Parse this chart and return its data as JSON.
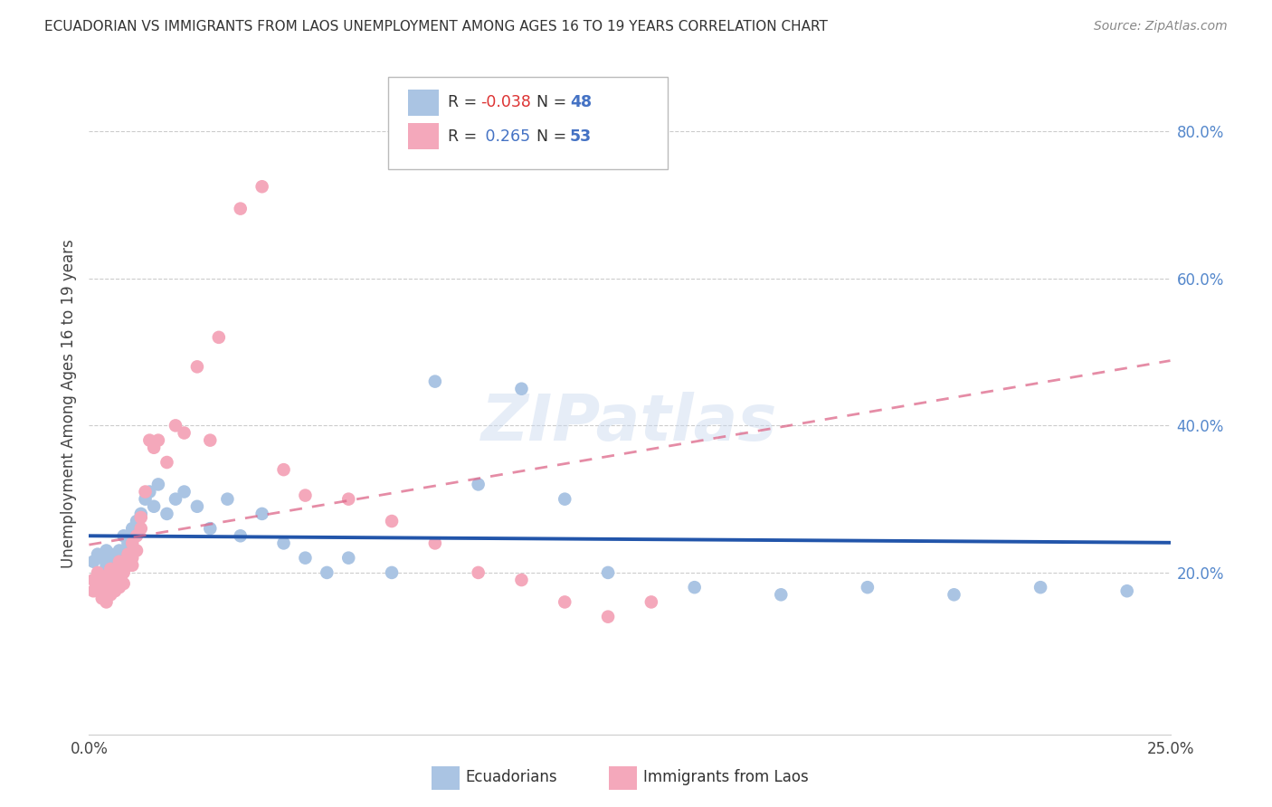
{
  "title": "ECUADORIAN VS IMMIGRANTS FROM LAOS UNEMPLOYMENT AMONG AGES 16 TO 19 YEARS CORRELATION CHART",
  "source": "Source: ZipAtlas.com",
  "ylabel": "Unemployment Among Ages 16 to 19 years",
  "xlim": [
    0.0,
    0.25
  ],
  "ylim": [
    -0.02,
    0.88
  ],
  "yticks_right": [
    0.2,
    0.4,
    0.6,
    0.8
  ],
  "ytick_right_labels": [
    "20.0%",
    "40.0%",
    "60.0%",
    "80.0%"
  ],
  "series1_color": "#aac4e3",
  "series2_color": "#f4a8bb",
  "trendline1_color": "#2255aa",
  "trendline2_color": "#dd6688",
  "watermark": "ZIPatlas",
  "ecuadorians_x": [
    0.001,
    0.002,
    0.003,
    0.003,
    0.004,
    0.004,
    0.005,
    0.005,
    0.006,
    0.006,
    0.007,
    0.007,
    0.008,
    0.008,
    0.009,
    0.009,
    0.01,
    0.01,
    0.011,
    0.012,
    0.013,
    0.014,
    0.015,
    0.016,
    0.018,
    0.02,
    0.022,
    0.025,
    0.028,
    0.032,
    0.035,
    0.04,
    0.045,
    0.05,
    0.055,
    0.06,
    0.07,
    0.08,
    0.09,
    0.1,
    0.11,
    0.12,
    0.14,
    0.16,
    0.18,
    0.2,
    0.22,
    0.24
  ],
  "ecuadorians_y": [
    0.215,
    0.225,
    0.22,
    0.2,
    0.23,
    0.21,
    0.225,
    0.215,
    0.22,
    0.2,
    0.215,
    0.23,
    0.22,
    0.25,
    0.21,
    0.24,
    0.225,
    0.26,
    0.27,
    0.28,
    0.3,
    0.31,
    0.29,
    0.32,
    0.28,
    0.3,
    0.31,
    0.29,
    0.26,
    0.3,
    0.25,
    0.28,
    0.24,
    0.22,
    0.2,
    0.22,
    0.2,
    0.46,
    0.32,
    0.45,
    0.3,
    0.2,
    0.18,
    0.17,
    0.18,
    0.17,
    0.18,
    0.175
  ],
  "laos_x": [
    0.001,
    0.001,
    0.002,
    0.002,
    0.003,
    0.003,
    0.003,
    0.004,
    0.004,
    0.004,
    0.005,
    0.005,
    0.005,
    0.006,
    0.006,
    0.006,
    0.007,
    0.007,
    0.007,
    0.008,
    0.008,
    0.008,
    0.009,
    0.009,
    0.01,
    0.01,
    0.01,
    0.011,
    0.011,
    0.012,
    0.012,
    0.013,
    0.014,
    0.015,
    0.016,
    0.018,
    0.02,
    0.022,
    0.025,
    0.028,
    0.03,
    0.035,
    0.04,
    0.045,
    0.05,
    0.06,
    0.07,
    0.08,
    0.09,
    0.1,
    0.11,
    0.12,
    0.13
  ],
  "laos_y": [
    0.19,
    0.175,
    0.2,
    0.185,
    0.195,
    0.18,
    0.165,
    0.195,
    0.175,
    0.16,
    0.205,
    0.185,
    0.17,
    0.2,
    0.195,
    0.175,
    0.215,
    0.195,
    0.18,
    0.21,
    0.2,
    0.185,
    0.225,
    0.21,
    0.24,
    0.22,
    0.21,
    0.25,
    0.23,
    0.275,
    0.26,
    0.31,
    0.38,
    0.37,
    0.38,
    0.35,
    0.4,
    0.39,
    0.48,
    0.38,
    0.52,
    0.695,
    0.725,
    0.34,
    0.305,
    0.3,
    0.27,
    0.24,
    0.2,
    0.19,
    0.16,
    0.14,
    0.16
  ]
}
